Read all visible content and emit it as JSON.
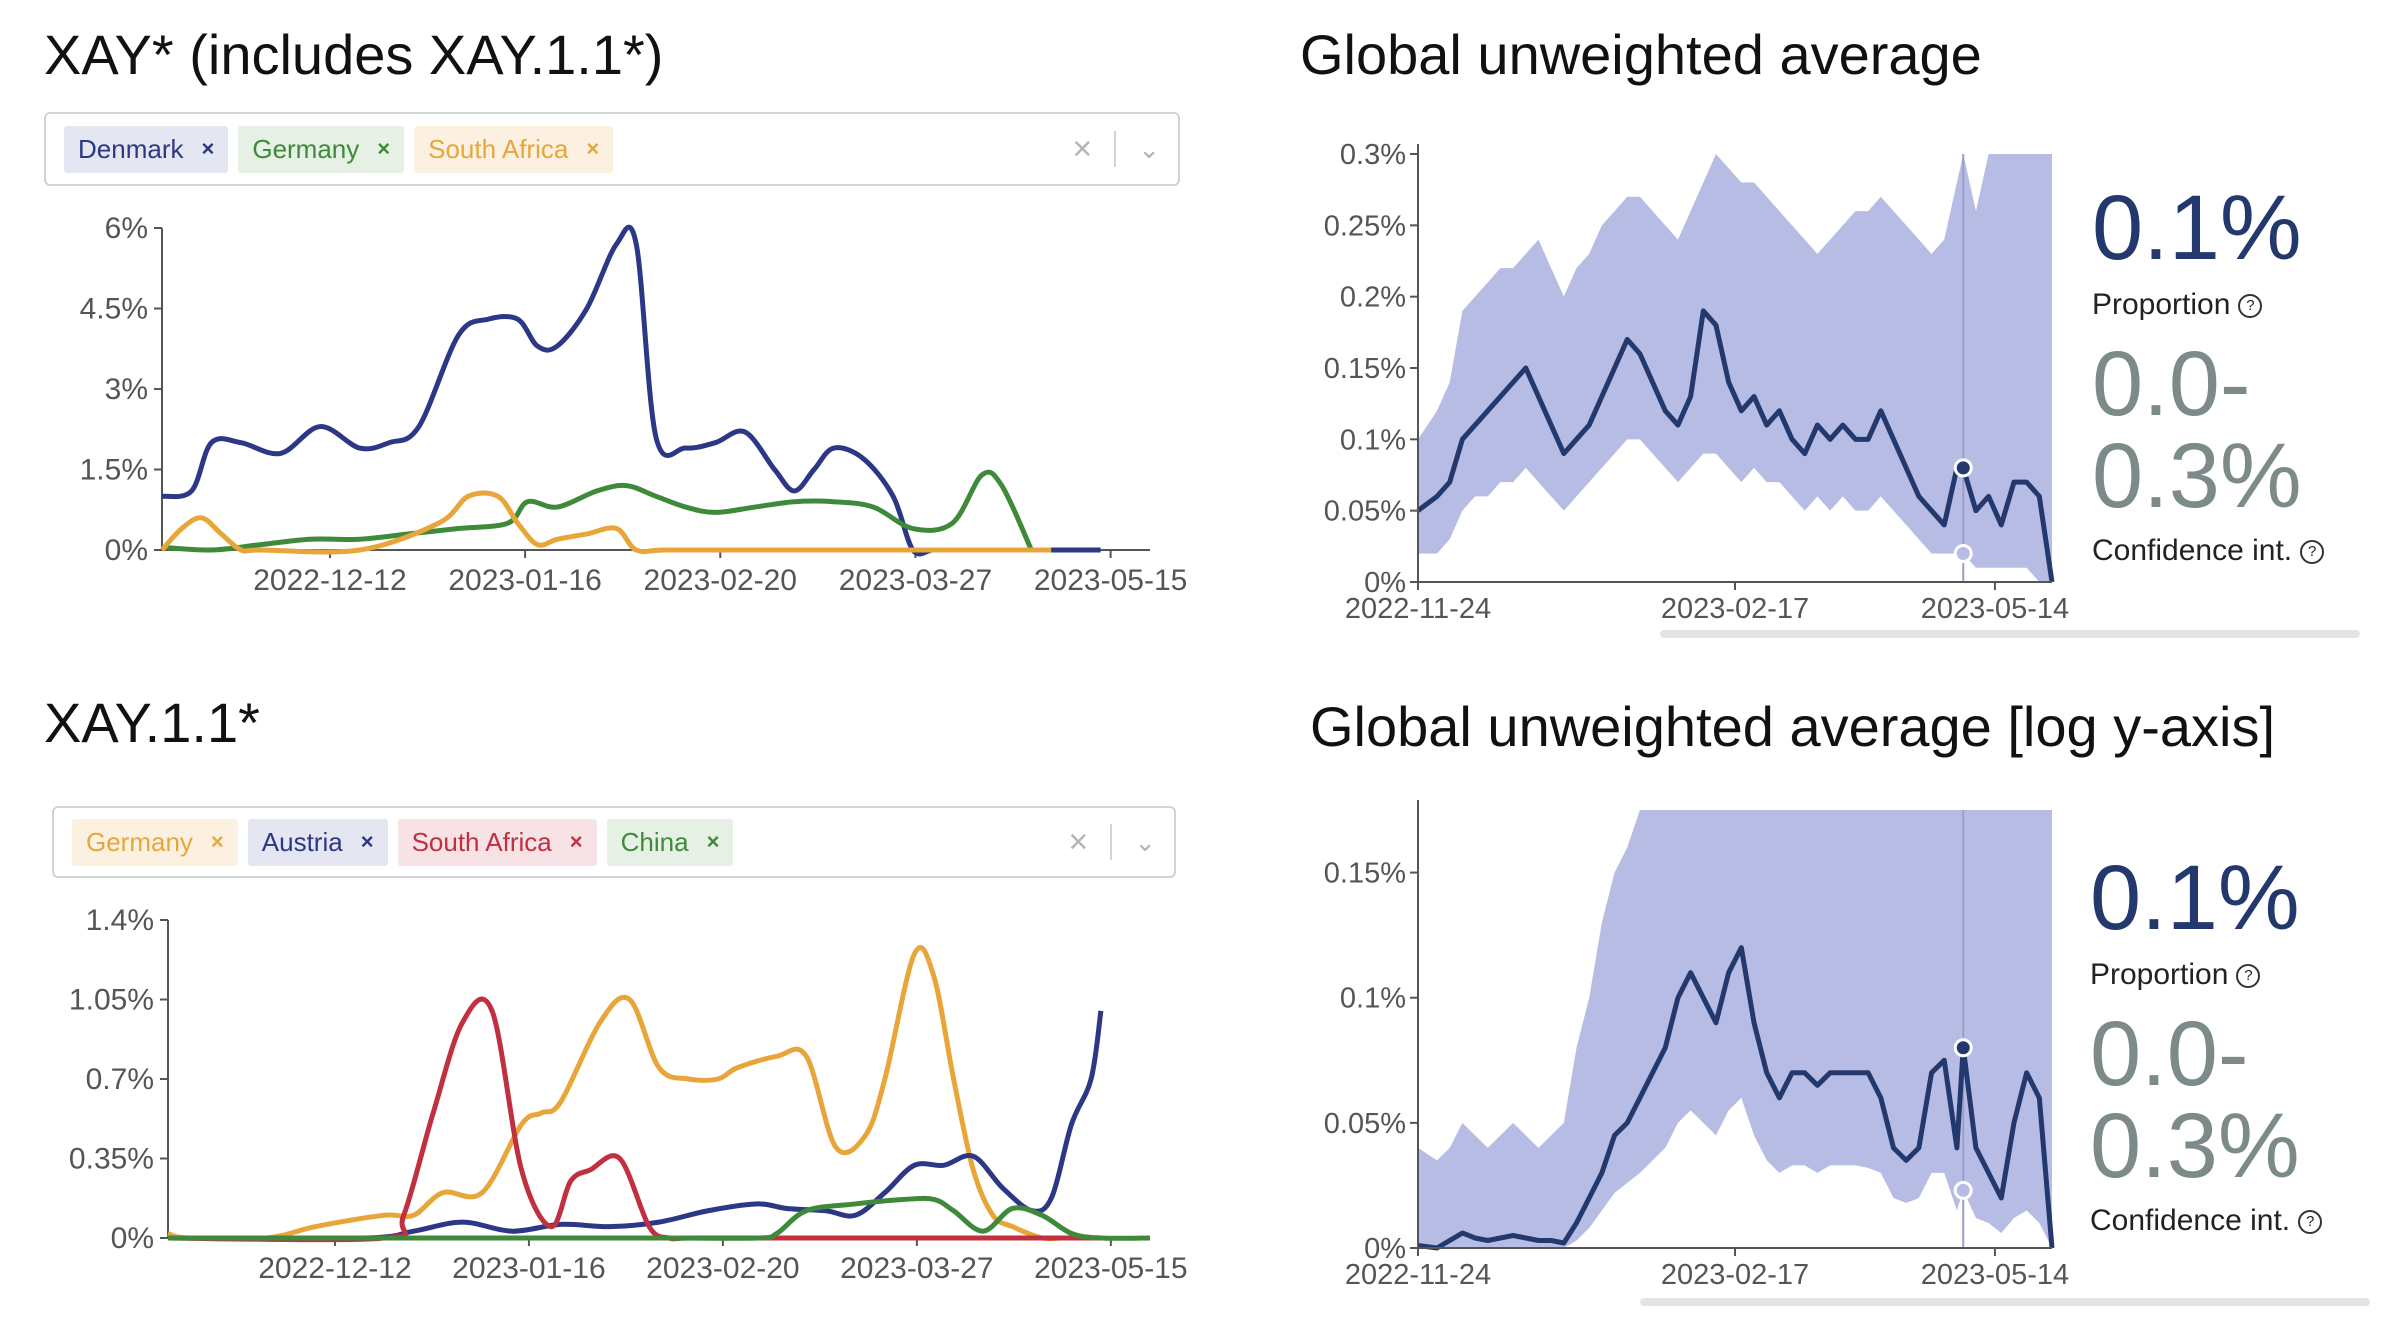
{
  "panels": {
    "top_left": {
      "title": "XAY* (includes XAY.1.1*)",
      "chips": [
        {
          "label": "Denmark",
          "remove": "×",
          "color": "#2c3786",
          "bg": "#e4e6f2"
        },
        {
          "label": "Germany",
          "remove": "×",
          "color": "#3f8a3a",
          "bg": "#e6f0e4"
        },
        {
          "label": "South Africa",
          "remove": "×",
          "color": "#e8a63a",
          "bg": "#fcf1e0"
        }
      ],
      "clear": "×",
      "chevron": "⌄"
    },
    "bottom_left": {
      "title": "XAY.1.1*",
      "chips": [
        {
          "label": "Germany",
          "remove": "×",
          "color": "#e8a63a",
          "bg": "#fcf1e0"
        },
        {
          "label": "Austria",
          "remove": "×",
          "color": "#2c3786",
          "bg": "#e4e6f2"
        },
        {
          "label": "South Africa",
          "remove": "×",
          "color": "#c03040",
          "bg": "#f7e3e5"
        },
        {
          "label": "China",
          "remove": "×",
          "color": "#3f8a3a",
          "bg": "#e6f0e4"
        }
      ],
      "clear": "×",
      "chevron": "⌄"
    },
    "top_right": {
      "title": "Global unweighted average",
      "proportion_value": "0.1%",
      "proportion_label": "Proportion",
      "ci_line1": "0.0-",
      "ci_line2": "0.3%",
      "ci_label": "Confidence int.",
      "help": "?"
    },
    "bottom_right": {
      "title": "Global unweighted average [log y-axis]",
      "proportion_value": "0.1%",
      "proportion_label": "Proportion",
      "ci_line1": "0.0-",
      "ci_line2": "0.3%",
      "ci_label": "Confidence int.",
      "help": "?"
    }
  },
  "chart_data": [
    {
      "type": "line",
      "id": "tl",
      "x_ticks": [
        "2022-12-12",
        "2023-01-16",
        "2023-02-20",
        "2023-03-27",
        "2023-05-15"
      ],
      "y_ticks": [
        "0%",
        "1.5%",
        "3%",
        "4.5%",
        "6%"
      ],
      "ylim": [
        0,
        6
      ],
      "xlim": [
        0,
        100
      ],
      "series": [
        {
          "name": "Denmark",
          "color": "#2c3786",
          "x": [
            0,
            3,
            5,
            8,
            12,
            16,
            20,
            23,
            26,
            30,
            33,
            36,
            38,
            40,
            43,
            46,
            48,
            50,
            53,
            56,
            59,
            62,
            64,
            66,
            68,
            71,
            74,
            76,
            78,
            80,
            83,
            85,
            86,
            88,
            90,
            93,
            95
          ],
          "y": [
            1.0,
            1.1,
            2.0,
            2.0,
            1.8,
            2.3,
            1.9,
            2.0,
            2.3,
            4.0,
            4.3,
            4.3,
            3.8,
            3.8,
            4.5,
            5.7,
            5.7,
            2.1,
            1.9,
            2.0,
            2.2,
            1.5,
            1.1,
            1.5,
            1.9,
            1.7,
            1.0,
            0,
            0,
            0,
            0,
            0,
            0,
            0,
            0,
            0,
            0
          ]
        },
        {
          "name": "Germany",
          "color": "#3f8a3a",
          "x": [
            0,
            5,
            10,
            15,
            20,
            25,
            30,
            35,
            37,
            40,
            44,
            47,
            50,
            53,
            56,
            60,
            64,
            68,
            72,
            76,
            80,
            83,
            85,
            88
          ],
          "y": [
            0.05,
            0,
            0.1,
            0.2,
            0.2,
            0.3,
            0.4,
            0.5,
            0.9,
            0.8,
            1.1,
            1.2,
            1.0,
            0.8,
            0.7,
            0.8,
            0.9,
            0.9,
            0.8,
            0.4,
            0.5,
            1.4,
            1.2,
            0
          ]
        },
        {
          "name": "South Africa",
          "color": "#e8a63a",
          "x": [
            0,
            2,
            4,
            6,
            8,
            10,
            20,
            28,
            31,
            34,
            36,
            38,
            40,
            43,
            46,
            48,
            51,
            60,
            70,
            80,
            90
          ],
          "y": [
            0,
            0.4,
            0.6,
            0.3,
            0,
            0,
            0,
            0.5,
            1.0,
            1.0,
            0.5,
            0.1,
            0.2,
            0.3,
            0.4,
            0,
            0,
            0,
            0,
            0,
            0
          ]
        }
      ]
    },
    {
      "type": "line",
      "id": "bl",
      "x_ticks": [
        "2022-12-12",
        "2023-01-16",
        "2023-02-20",
        "2023-03-27",
        "2023-05-15"
      ],
      "y_ticks": [
        "0%",
        "0.35%",
        "0.7%",
        "1.05%",
        "1.4%"
      ],
      "ylim": [
        0,
        1.4
      ],
      "xlim": [
        0,
        100
      ],
      "series": [
        {
          "name": "Germany",
          "color": "#e8a63a",
          "x": [
            0,
            2,
            10,
            15,
            22,
            25,
            28,
            32,
            36,
            38,
            40,
            44,
            47,
            50,
            53,
            56,
            58,
            62,
            65,
            68,
            71,
            73,
            76,
            78,
            80,
            82,
            84,
            86,
            89,
            91,
            93,
            95
          ],
          "y": [
            0.02,
            0,
            0,
            0.05,
            0.1,
            0.1,
            0.2,
            0.2,
            0.5,
            0.55,
            0.6,
            0.95,
            1.05,
            0.75,
            0.7,
            0.7,
            0.75,
            0.8,
            0.8,
            0.4,
            0.45,
            0.7,
            1.25,
            1.15,
            0.7,
            0.3,
            0.1,
            0.05,
            0,
            0,
            0,
            0
          ]
        },
        {
          "name": "Austria",
          "color": "#2c3786",
          "x": [
            0,
            20,
            25,
            30,
            35,
            40,
            45,
            50,
            55,
            60,
            63,
            67,
            70,
            73,
            76,
            79,
            82,
            85,
            88,
            90,
            92,
            94,
            95
          ],
          "y": [
            0,
            0,
            0.03,
            0.07,
            0.03,
            0.06,
            0.05,
            0.07,
            0.12,
            0.15,
            0.13,
            0.12,
            0.1,
            0.2,
            0.32,
            0.32,
            0.36,
            0.22,
            0.12,
            0.18,
            0.5,
            0.7,
            1.0
          ]
        },
        {
          "name": "South Africa",
          "color": "#c03040",
          "x": [
            0,
            22,
            24,
            27,
            30,
            33,
            36,
            39,
            41,
            43,
            46,
            49,
            51,
            53,
            60,
            70,
            80,
            90,
            95
          ],
          "y": [
            0,
            0,
            0.1,
            0.55,
            0.95,
            1.0,
            0.3,
            0.05,
            0.25,
            0.3,
            0.35,
            0.05,
            0,
            0,
            0,
            0,
            0,
            0,
            0
          ]
        },
        {
          "name": "China",
          "color": "#3f8a3a",
          "x": [
            0,
            20,
            30,
            40,
            50,
            60,
            62,
            65,
            70,
            75,
            78,
            80,
            83,
            86,
            89,
            92,
            95,
            100
          ],
          "y": [
            0,
            0,
            0,
            0,
            0,
            0,
            0.02,
            0.12,
            0.15,
            0.17,
            0.17,
            0.12,
            0.03,
            0.13,
            0.1,
            0.02,
            0,
            0
          ]
        }
      ]
    },
    {
      "type": "area",
      "id": "tr",
      "x_ticks": [
        "2022-11-24",
        "2023-02-17",
        "2023-05-14"
      ],
      "y_ticks": [
        "0%",
        "0.05%",
        "0.1%",
        "0.15%",
        "0.2%",
        "0.25%",
        "0.3%"
      ],
      "ylim": [
        0,
        0.3
      ],
      "xlim": [
        0,
        100
      ],
      "band_color": "#b6bce4",
      "line_color": "#23396e",
      "marker_x": 86,
      "marker_value": 0.08,
      "marker_low": 0.02,
      "x": [
        0,
        3,
        5,
        7,
        9,
        11,
        13,
        15,
        17,
        19,
        21,
        23,
        25,
        27,
        29,
        31,
        33,
        35,
        37,
        39,
        41,
        43,
        45,
        47,
        49,
        51,
        53,
        55,
        57,
        59,
        61,
        63,
        65,
        67,
        69,
        71,
        73,
        75,
        77,
        79,
        81,
        83,
        85,
        86,
        88,
        90,
        92,
        94,
        96,
        98,
        100
      ],
      "y": [
        0.05,
        0.06,
        0.07,
        0.1,
        0.11,
        0.12,
        0.13,
        0.14,
        0.15,
        0.13,
        0.11,
        0.09,
        0.1,
        0.11,
        0.13,
        0.15,
        0.17,
        0.16,
        0.14,
        0.12,
        0.11,
        0.13,
        0.19,
        0.18,
        0.14,
        0.12,
        0.13,
        0.11,
        0.12,
        0.1,
        0.09,
        0.11,
        0.1,
        0.11,
        0.1,
        0.1,
        0.12,
        0.1,
        0.08,
        0.06,
        0.05,
        0.04,
        0.08,
        0.08,
        0.05,
        0.06,
        0.04,
        0.07,
        0.07,
        0.06,
        0.0
      ],
      "lower": [
        0.02,
        0.02,
        0.03,
        0.05,
        0.06,
        0.06,
        0.07,
        0.07,
        0.08,
        0.07,
        0.06,
        0.05,
        0.06,
        0.07,
        0.08,
        0.09,
        0.1,
        0.1,
        0.09,
        0.08,
        0.07,
        0.08,
        0.09,
        0.09,
        0.08,
        0.07,
        0.08,
        0.07,
        0.07,
        0.06,
        0.05,
        0.06,
        0.05,
        0.06,
        0.05,
        0.05,
        0.06,
        0.05,
        0.04,
        0.03,
        0.02,
        0.02,
        0.02,
        0.02,
        0.01,
        0.01,
        0.01,
        0.01,
        0.01,
        0.0,
        0.0
      ],
      "upper": [
        0.1,
        0.12,
        0.14,
        0.19,
        0.2,
        0.21,
        0.22,
        0.22,
        0.23,
        0.24,
        0.22,
        0.2,
        0.22,
        0.23,
        0.25,
        0.26,
        0.27,
        0.27,
        0.26,
        0.25,
        0.24,
        0.26,
        0.28,
        0.3,
        0.29,
        0.28,
        0.28,
        0.27,
        0.26,
        0.25,
        0.24,
        0.23,
        0.24,
        0.25,
        0.26,
        0.26,
        0.27,
        0.26,
        0.25,
        0.24,
        0.23,
        0.24,
        0.28,
        0.3,
        0.26,
        0.3,
        0.3,
        0.3,
        0.3,
        0.3,
        0.3
      ]
    },
    {
      "type": "area",
      "id": "br",
      "x_ticks": [
        "2022-11-24",
        "2023-02-17",
        "2023-05-14"
      ],
      "y_ticks": [
        "0%",
        "0.05%",
        "0.1%",
        "0.15%"
      ],
      "ylim": [
        0,
        0.175
      ],
      "xlim": [
        0,
        100
      ],
      "band_color": "#b6bce4",
      "line_color": "#23396e",
      "marker_x": 86,
      "marker_value": 0.08,
      "marker_low": 0.023,
      "x": [
        0,
        3,
        5,
        7,
        9,
        11,
        13,
        15,
        17,
        19,
        21,
        23,
        25,
        27,
        29,
        31,
        33,
        35,
        37,
        39,
        41,
        43,
        45,
        47,
        49,
        51,
        53,
        55,
        57,
        59,
        61,
        63,
        65,
        67,
        69,
        71,
        73,
        75,
        77,
        79,
        81,
        83,
        85,
        86,
        88,
        90,
        92,
        94,
        96,
        98,
        100
      ],
      "y": [
        0.001,
        0.0,
        0.003,
        0.006,
        0.004,
        0.003,
        0.004,
        0.005,
        0.004,
        0.003,
        0.003,
        0.002,
        0.01,
        0.02,
        0.03,
        0.045,
        0.05,
        0.06,
        0.07,
        0.08,
        0.1,
        0.11,
        0.1,
        0.09,
        0.11,
        0.12,
        0.09,
        0.07,
        0.06,
        0.07,
        0.07,
        0.065,
        0.07,
        0.07,
        0.07,
        0.07,
        0.06,
        0.04,
        0.035,
        0.04,
        0.07,
        0.075,
        0.04,
        0.08,
        0.04,
        0.03,
        0.02,
        0.05,
        0.07,
        0.06,
        0.0
      ],
      "lower": [
        0.0,
        0.0,
        0.0,
        0.0,
        0.0,
        0.0,
        0.0,
        0.0,
        0.0,
        0.0,
        0.0,
        0.0,
        0.003,
        0.008,
        0.015,
        0.022,
        0.026,
        0.03,
        0.035,
        0.04,
        0.05,
        0.055,
        0.05,
        0.045,
        0.055,
        0.06,
        0.045,
        0.035,
        0.03,
        0.033,
        0.033,
        0.03,
        0.033,
        0.033,
        0.033,
        0.032,
        0.03,
        0.02,
        0.018,
        0.02,
        0.03,
        0.03,
        0.015,
        0.023,
        0.012,
        0.01,
        0.006,
        0.012,
        0.015,
        0.01,
        0.0
      ],
      "upper": [
        0.04,
        0.035,
        0.04,
        0.05,
        0.045,
        0.04,
        0.045,
        0.05,
        0.045,
        0.04,
        0.045,
        0.05,
        0.08,
        0.1,
        0.13,
        0.15,
        0.16,
        0.175,
        0.175,
        0.175,
        0.175,
        0.175,
        0.175,
        0.175,
        0.175,
        0.175,
        0.175,
        0.175,
        0.175,
        0.175,
        0.175,
        0.175,
        0.175,
        0.175,
        0.175,
        0.175,
        0.175,
        0.175,
        0.175,
        0.175,
        0.175,
        0.175,
        0.175,
        0.175,
        0.175,
        0.175,
        0.175,
        0.175,
        0.175,
        0.175,
        0.175
      ]
    }
  ]
}
